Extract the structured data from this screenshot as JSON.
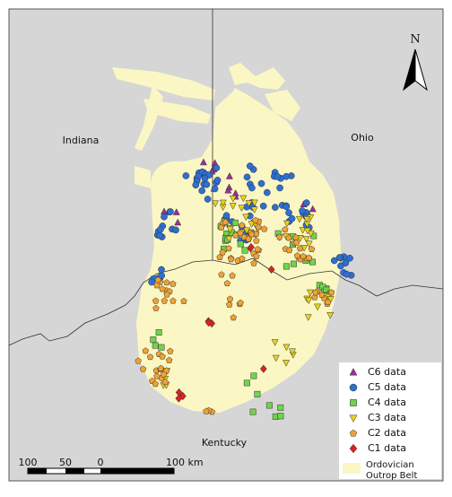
{
  "map": {
    "north_label": "N",
    "regions": [
      "Indiana",
      "Ohio",
      "Kentucky"
    ],
    "legend": [
      "C6 data",
      "C5 data",
      "C4 data",
      "C3 data",
      "C2 data",
      "C1 data",
      "Ordovician",
      "Outrop Belt"
    ],
    "scale": [
      "100",
      "50",
      "0",
      "100 km"
    ]
  }
}
